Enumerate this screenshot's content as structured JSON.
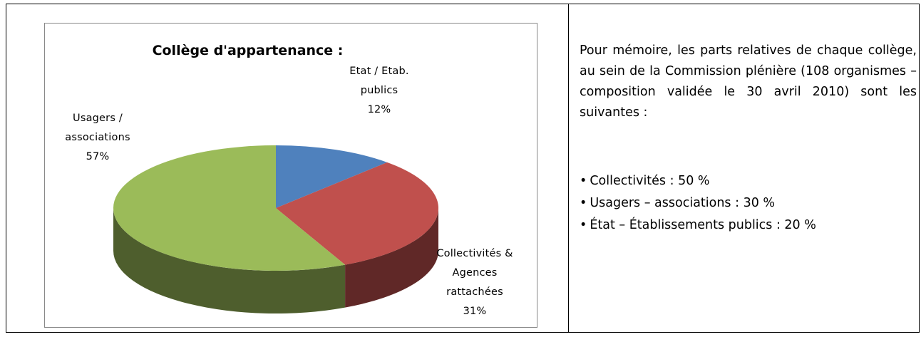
{
  "chart_data": {
    "type": "pie",
    "title": "Collège d'appartenance :",
    "categories": [
      "Etat / Etab. publics",
      "Collectivités & Agences rattachées",
      "Usagers / associations"
    ],
    "values": [
      12,
      31,
      57
    ],
    "value_labels": [
      "12%",
      "31%",
      "57%"
    ],
    "colors": [
      "#4f81bd",
      "#c0504d",
      "#9bbb59"
    ]
  },
  "note": {
    "text": "Pour mémoire, les parts relatives de chaque collège, au sein de la Commission plénière (108 organismes – composition validée le 30 avril 2010) sont les suivantes :",
    "items": [
      "Collectivités : 50 %",
      "Usagers – associations : 30 %",
      "État – Établissements publics : 20 %"
    ]
  }
}
